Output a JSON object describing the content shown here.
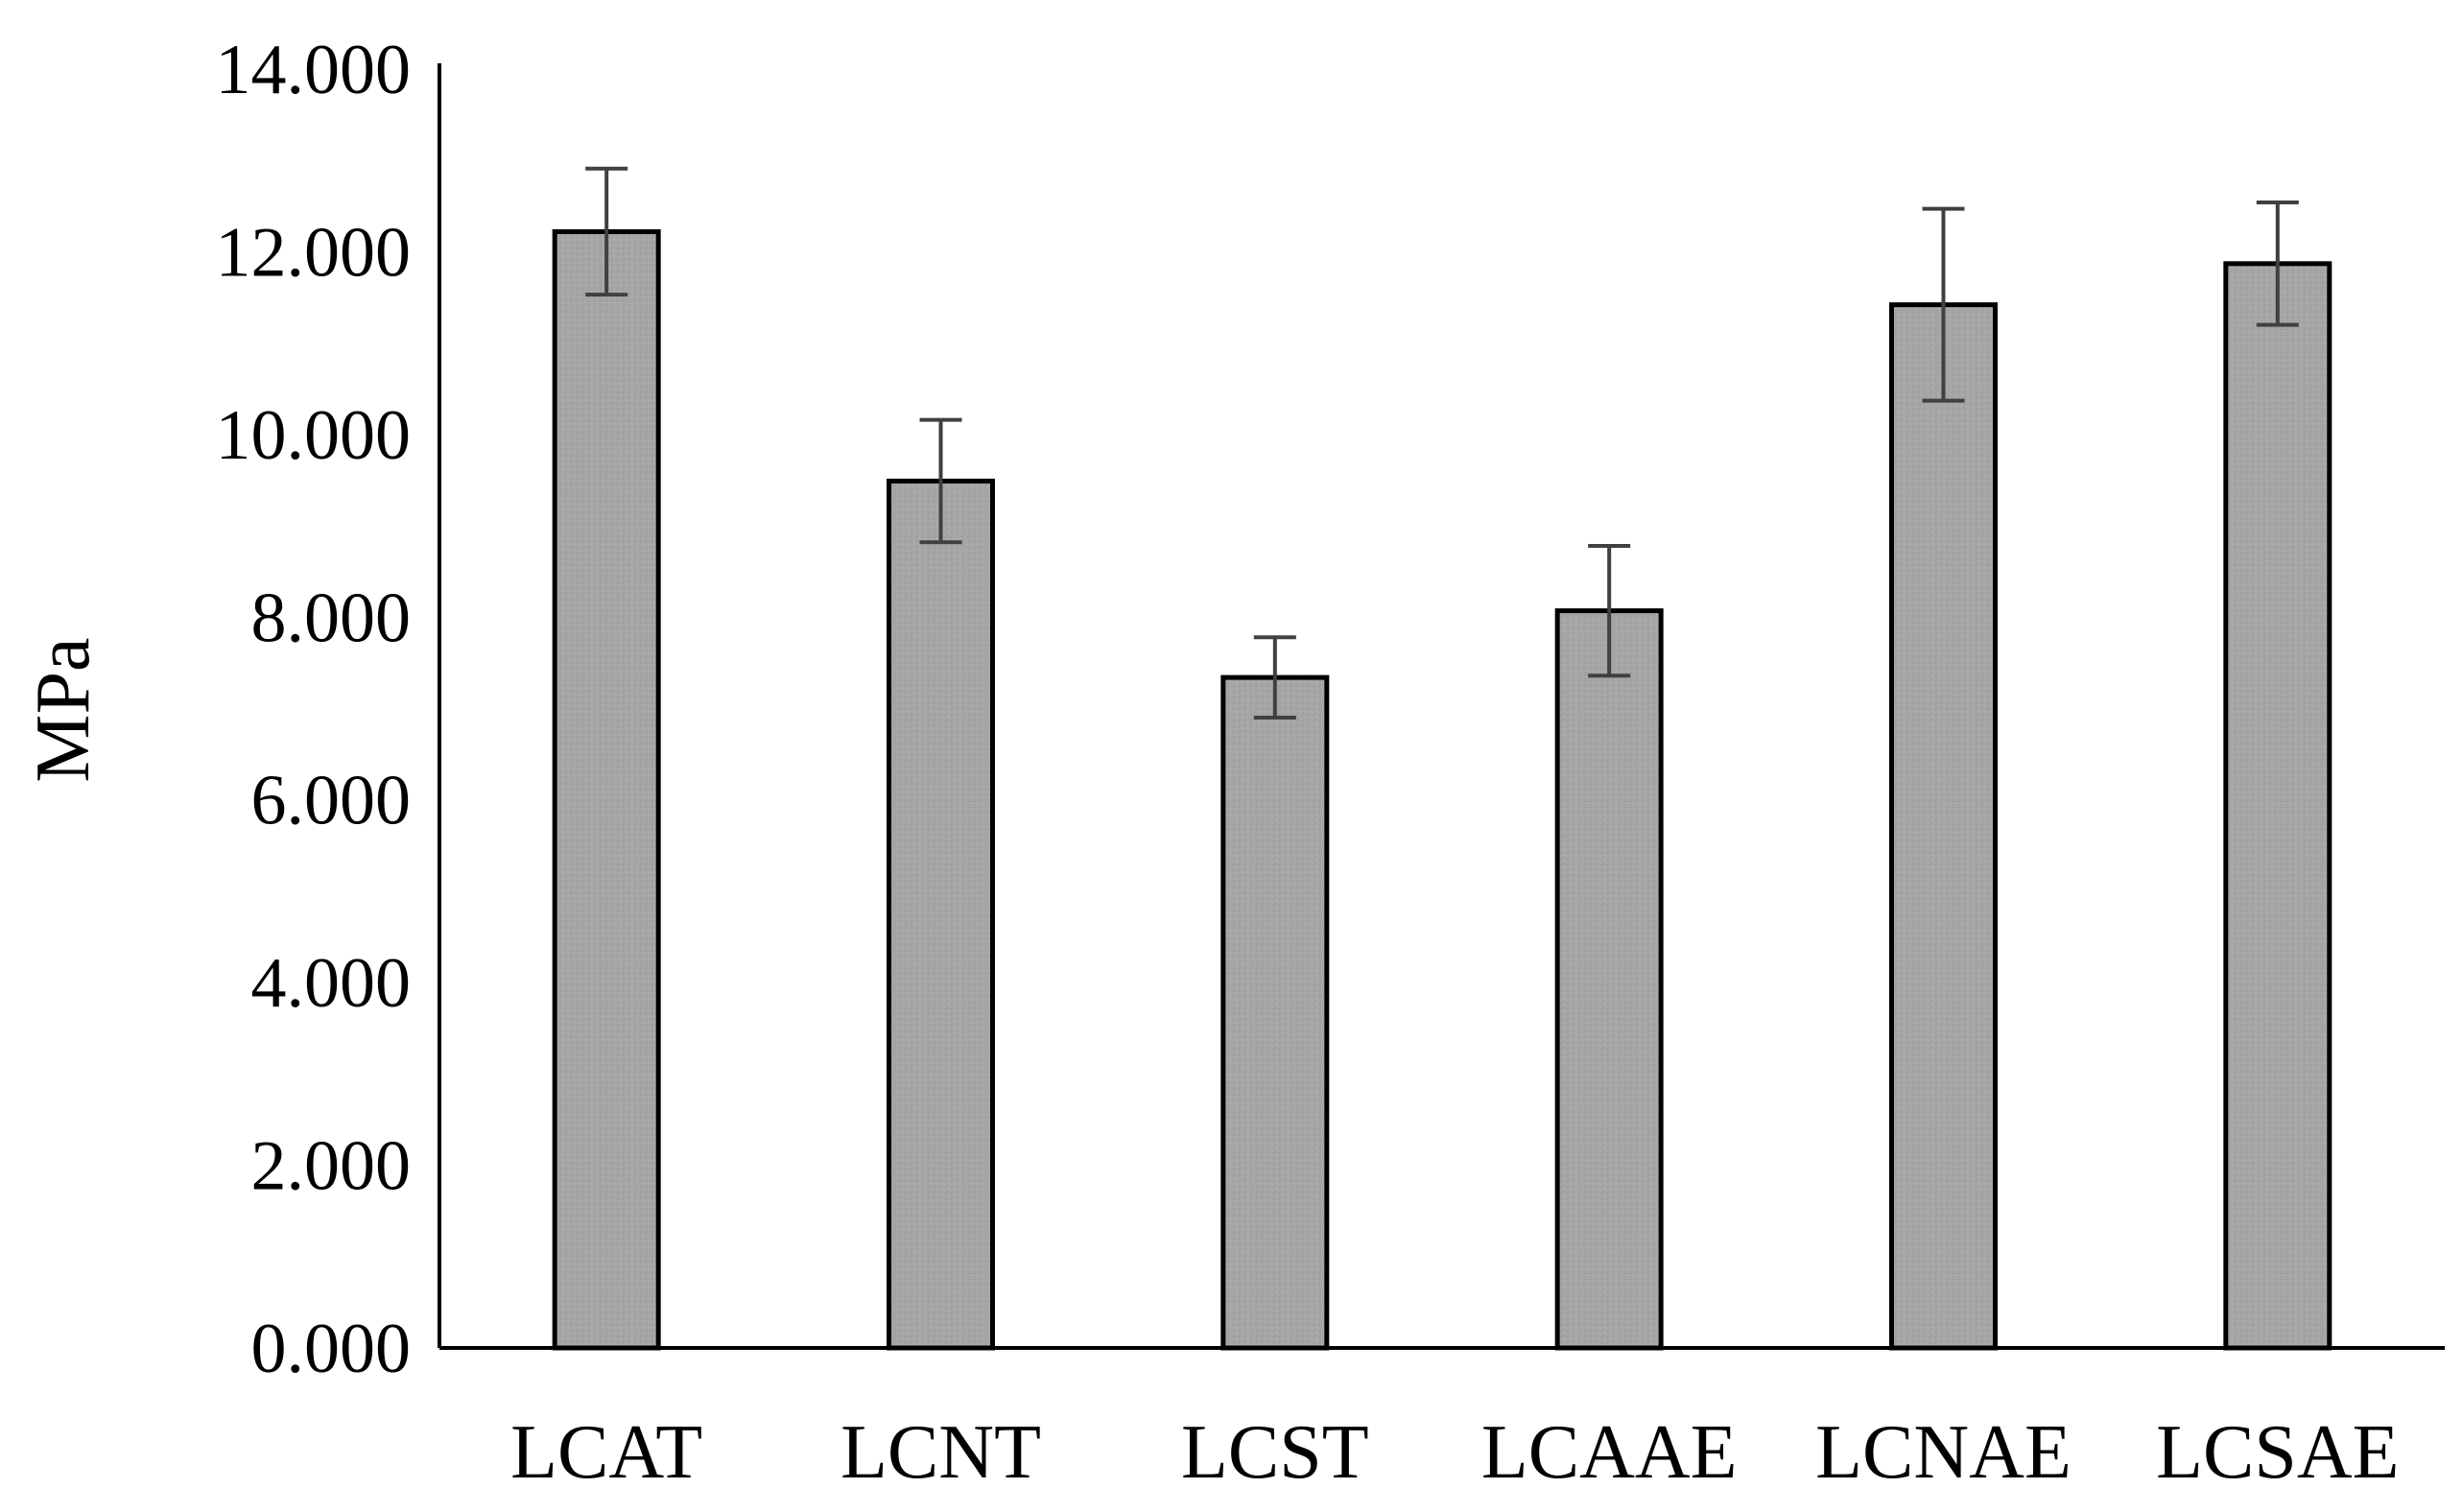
{
  "chart_data": {
    "type": "bar",
    "title": "",
    "xlabel": "",
    "ylabel": "MPa",
    "ylim": [
      0,
      14
    ],
    "yticks": [
      0,
      2,
      4,
      6,
      8,
      10,
      12,
      14
    ],
    "ytick_labels": [
      "0.000",
      "2.000",
      "4.000",
      "6.000",
      "8.000",
      "10.000",
      "12.000",
      "14.000"
    ],
    "categories": [
      "LCAT",
      "LCNT",
      "LCST",
      "LCAAE",
      "LCNAE",
      "LCSAE"
    ],
    "values": [
      12.22,
      9.49,
      7.34,
      8.07,
      11.42,
      11.87
    ],
    "errors": [
      0.69,
      0.67,
      0.44,
      0.71,
      1.05,
      0.67
    ],
    "grid": false,
    "legend": "none",
    "colors": {
      "bar_fill": "#a6a6a6",
      "bar_stroke": "#000000",
      "error_bar": "#404040",
      "axis": "#000000"
    }
  }
}
